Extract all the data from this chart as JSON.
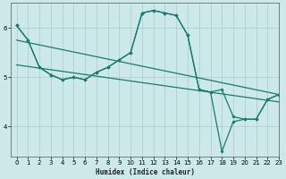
{
  "xlabel": "Humidex (Indice chaleur)",
  "bg_color": "#cce8e8",
  "line_color": "#1a7a6e",
  "grid_color": "#aacccc",
  "xlim": [
    -0.5,
    23
  ],
  "ylim": [
    3.4,
    6.5
  ],
  "xticks": [
    0,
    1,
    2,
    3,
    4,
    5,
    6,
    7,
    8,
    9,
    10,
    11,
    12,
    13,
    14,
    15,
    16,
    17,
    18,
    19,
    20,
    21,
    22,
    23
  ],
  "yticks": [
    4,
    5,
    6
  ],
  "line1_x": [
    0,
    1,
    2,
    3,
    4,
    5,
    6,
    7,
    8,
    9,
    10,
    11,
    12,
    13,
    14,
    15,
    16,
    17,
    18,
    19,
    20,
    21,
    22,
    23
  ],
  "line1_y": [
    6.05,
    5.75,
    5.2,
    5.05,
    4.95,
    5.0,
    4.95,
    5.1,
    5.2,
    5.35,
    5.5,
    6.3,
    6.35,
    6.3,
    6.25,
    5.85,
    4.75,
    4.7,
    3.5,
    4.1,
    4.15,
    4.15,
    4.55,
    4.65
  ],
  "line2_x": [
    0,
    1,
    2,
    3,
    4,
    5,
    6,
    7,
    8,
    9,
    10,
    11,
    12,
    13,
    14,
    15,
    16,
    17,
    18,
    19,
    20,
    21,
    22,
    23
  ],
  "line3_x": [
    0,
    23
  ],
  "line3_y": [
    5.75,
    4.65
  ],
  "line4_x": [
    0,
    23
  ],
  "line4_y": [
    5.25,
    4.5
  ],
  "marker_x1": [
    0,
    1,
    2,
    3,
    4,
    5,
    6,
    7,
    8,
    9,
    10,
    11,
    12,
    13,
    14,
    15,
    16,
    17,
    18,
    19,
    20,
    21,
    22,
    23
  ],
  "marker_y1": [
    6.05,
    5.75,
    5.2,
    5.05,
    4.95,
    5.0,
    4.95,
    5.1,
    5.2,
    5.35,
    5.5,
    6.3,
    6.35,
    6.3,
    6.25,
    5.85,
    4.75,
    4.7,
    3.5,
    4.1,
    4.15,
    4.15,
    4.55,
    4.65
  ],
  "marker_y2": [
    6.05,
    5.75,
    5.2,
    5.05,
    4.95,
    5.0,
    4.95,
    5.1,
    5.2,
    5.35,
    5.5,
    6.3,
    6.35,
    6.3,
    6.25,
    5.85,
    4.75,
    4.7,
    4.75,
    4.2,
    4.15,
    4.15,
    4.55,
    4.65
  ]
}
